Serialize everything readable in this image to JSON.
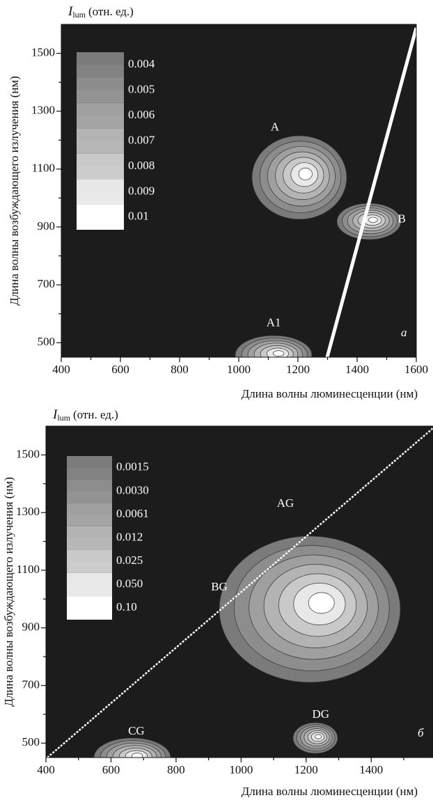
{
  "chart_data": [
    {
      "type": "contour",
      "panel_label": "a",
      "colorbar_label": {
        "symbol": "I",
        "subscript": "lum",
        "unit": "(отн. ед.)"
      },
      "xlabel": "Длина волны люминесценции (нм)",
      "ylabel": "Длина волны возбуждающего излучения (нм)",
      "xlim": [
        400,
        1600
      ],
      "ylim": [
        450,
        1600
      ],
      "xticks": [
        400,
        600,
        800,
        1000,
        1200,
        1400,
        1600
      ],
      "xminorticks": [
        500,
        700,
        900,
        1100,
        1300,
        1500
      ],
      "yticks": [
        500,
        700,
        900,
        1100,
        1300,
        1500
      ],
      "yminorticks": [
        600,
        800,
        1000,
        1200,
        1400
      ],
      "background": "#1c1c1c",
      "levels": [
        {
          "value": 0.004,
          "color": "#7b7b7b"
        },
        {
          "value": 0.005,
          "color": "#8d8d8d"
        },
        {
          "value": 0.006,
          "color": "#9f9f9f"
        },
        {
          "value": 0.007,
          "color": "#b3b3b3"
        },
        {
          "value": 0.008,
          "color": "#c9c9c9"
        },
        {
          "value": 0.009,
          "color": "#e8e8e8"
        },
        {
          "value": 0.01,
          "color": "#ffffff"
        }
      ],
      "annotations": [
        {
          "text": "A",
          "x": 1122,
          "y": 1243
        },
        {
          "text": "B",
          "x": 1551,
          "y": 925
        },
        {
          "text": "A1",
          "x": 1118,
          "y": 567
        }
      ]
    },
    {
      "type": "contour",
      "panel_label": "б",
      "colorbar_label": {
        "symbol": "I",
        "subscript": "lum",
        "unit": "(отн. ед.)"
      },
      "xlabel": "Длина волны люминесценции (нм)",
      "ylabel": "Длина волны возбуждающего излучения (нм)",
      "xlim": [
        400,
        1590
      ],
      "ylim": [
        450,
        1600
      ],
      "xticks": [
        400,
        600,
        800,
        1000,
        1200,
        1400
      ],
      "xminorticks": [
        500,
        700,
        900,
        1100,
        1300,
        1500
      ],
      "yticks": [
        500,
        700,
        900,
        1100,
        1300,
        1500
      ],
      "yminorticks": [
        600,
        800,
        1000,
        1200,
        1400
      ],
      "background": "#1c1c1c",
      "levels": [
        {
          "value": 0.0015,
          "color": "#7b7b7b"
        },
        {
          "value": 0.003,
          "label": "0.0030",
          "color": "#8d8d8d"
        },
        {
          "value": 0.0061,
          "color": "#9f9f9f"
        },
        {
          "value": 0.012,
          "color": "#b3b3b3"
        },
        {
          "value": 0.025,
          "color": "#c9c9c9"
        },
        {
          "value": 0.05,
          "label": "0.050",
          "color": "#e8e8e8"
        },
        {
          "value": 0.1,
          "label": "0.10",
          "color": "#ffffff"
        }
      ],
      "annotations": [
        {
          "text": "AG",
          "x": 1136,
          "y": 1329
        },
        {
          "text": "BG",
          "x": 933,
          "y": 1039
        },
        {
          "text": "CG",
          "x": 678,
          "y": 539
        },
        {
          "text": "DG",
          "x": 1245,
          "y": 597
        }
      ]
    }
  ]
}
